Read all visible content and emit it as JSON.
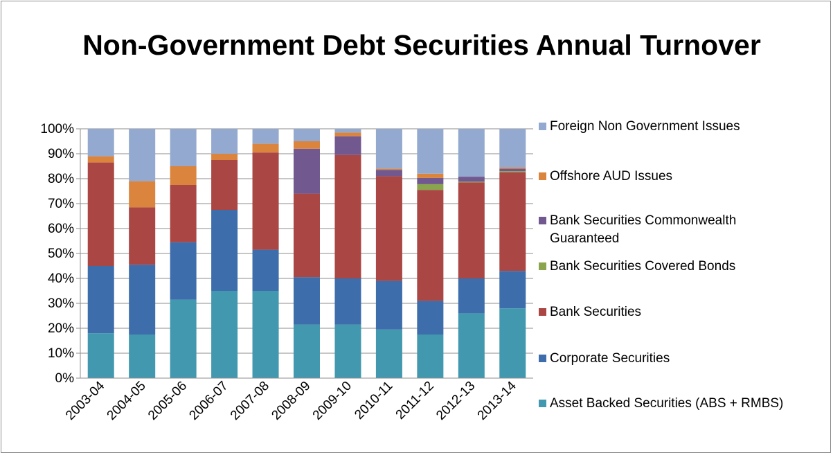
{
  "chart_data": {
    "type": "bar",
    "stacked": true,
    "percent_stacked": true,
    "title": "Non-Government Debt Securities Annual Turnover",
    "categories": [
      "2003-04",
      "2004-05",
      "2005-06",
      "2006-07",
      "2007-08",
      "2008-09",
      "2009-10",
      "2010-11",
      "2011-12",
      "2012-13",
      "2013-14"
    ],
    "y_ticks": [
      "0%",
      "10%",
      "20%",
      "30%",
      "40%",
      "50%",
      "60%",
      "70%",
      "80%",
      "90%",
      "100%"
    ],
    "ylim": [
      0,
      100
    ],
    "grid": true,
    "legend_position": "right",
    "series": [
      {
        "name": "Asset Backed Securities (ABS + RMBS)",
        "color": "#4198AF",
        "values": [
          18,
          17.5,
          31.5,
          35,
          35,
          21.5,
          21.5,
          19.5,
          17.5,
          26,
          28
        ]
      },
      {
        "name": "Corporate Securities",
        "color": "#3D6DAA",
        "values": [
          27,
          28,
          23,
          32.5,
          16.5,
          19,
          18.5,
          19.5,
          13.5,
          14,
          15
        ]
      },
      {
        "name": "Bank Securities",
        "color": "#AA4643",
        "values": [
          41.5,
          23,
          23,
          20,
          39,
          33.5,
          49.5,
          42,
          44.5,
          38.5,
          39.5
        ]
      },
      {
        "name": "Bank Securities Covered Bonds",
        "color": "#89A54E",
        "values": [
          0,
          0,
          0,
          0,
          0,
          0,
          0,
          0,
          2.3,
          0.3,
          0.5
        ]
      },
      {
        "name": "Bank Securities Commonwealth Guaranteed",
        "color": "#71588F",
        "values": [
          0,
          0,
          0,
          0,
          0,
          18,
          7.5,
          2.5,
          2.5,
          2,
          1
        ]
      },
      {
        "name": "Offshore AUD Issues",
        "color": "#DB843D",
        "values": [
          2.5,
          10.5,
          7.5,
          2.5,
          3.5,
          3,
          1.5,
          0.5,
          1.7,
          0,
          0.5
        ]
      },
      {
        "name": "Foreign Non Government Issues",
        "color": "#93A9CF",
        "values": [
          11,
          21,
          15,
          10,
          6,
          5,
          1.5,
          16,
          18,
          19.2,
          15.5
        ]
      }
    ]
  }
}
